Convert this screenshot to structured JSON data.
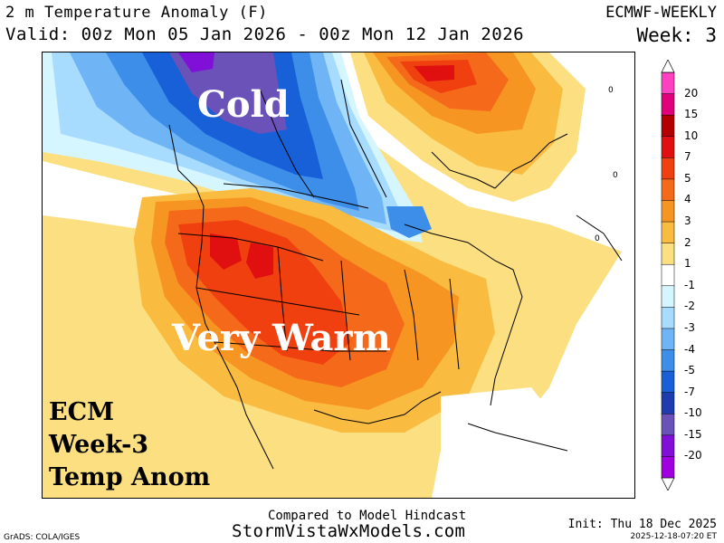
{
  "header": {
    "title": "2 m Temperature Anomaly (F)",
    "valid": "Valid: 00z Mon 05 Jan 2026 - 00z Mon 12 Jan 2026",
    "model": "ECMWF-WEEKLY",
    "week": "Week: 3"
  },
  "map": {
    "label_cold": "Cold",
    "label_warm": "Very Warm",
    "overlay_lines": [
      "ECM",
      "Week-3",
      "Temp Anom"
    ],
    "contour_label": "0"
  },
  "colorbar": {
    "labels": [
      "20",
      "15",
      "10",
      "7",
      "5",
      "4",
      "3",
      "2",
      "1",
      "-1",
      "-2",
      "-3",
      "-4",
      "-5",
      "-7",
      "-10",
      "-15",
      "-20"
    ],
    "colors": [
      "#ff40c0",
      "#e0007a",
      "#b40000",
      "#e01010",
      "#f04010",
      "#f56a1a",
      "#f79522",
      "#f9bb40",
      "#fbdf80",
      "#ffffff",
      "#d6f6ff",
      "#a8dcff",
      "#6fb4f5",
      "#3c8ee8",
      "#1860d8",
      "#1c3cb0",
      "#6a52b8",
      "#8010d8",
      "#a000e0"
    ]
  },
  "footer": {
    "line1": "Compared to Model Hindcast",
    "line2": "StormVistaWxModels.com",
    "credit": "GrADS: COLA/IGES",
    "init": "Init: Thu 18 Dec 2025",
    "stamp": "2025-12-18-07:20 ET"
  }
}
